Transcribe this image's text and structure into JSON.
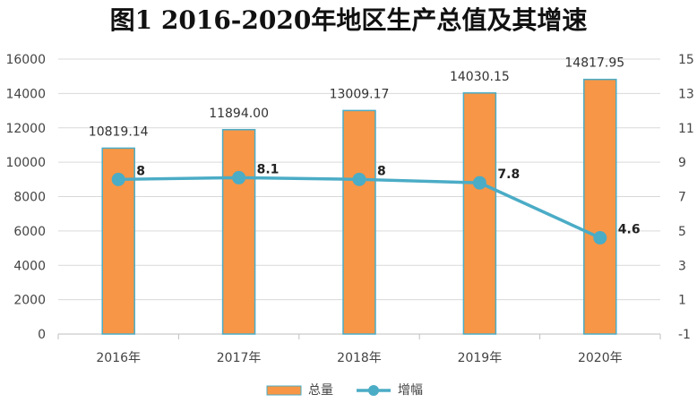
{
  "chart_data": {
    "type": "bar",
    "title": "图1  2016-2020年地区生产总值及其增速",
    "categories": [
      "2016年",
      "2017年",
      "2018年",
      "2019年",
      "2020年"
    ],
    "bar_series": {
      "name": "总量",
      "values": [
        10819.14,
        11894.0,
        13009.17,
        14030.15,
        14817.95
      ],
      "value_labels": [
        "10819.14",
        "11894.00",
        "13009.17",
        "14030.15",
        "14817.95"
      ],
      "color": "#F79646",
      "stroke": "#4BACC6"
    },
    "line_series": {
      "name": "增幅",
      "values": [
        8,
        8.1,
        8,
        7.8,
        4.6
      ],
      "value_labels": [
        "8",
        "8.1",
        "8",
        "7.8",
        "4.6"
      ],
      "color": "#4BACC6",
      "axis": "right"
    },
    "y_left": {
      "min": 0,
      "max": 16000,
      "ticks": [
        "0",
        "2000",
        "4000",
        "6000",
        "8000",
        "10000",
        "12000",
        "14000",
        "16000"
      ]
    },
    "y_right": {
      "min": -1,
      "max": 15,
      "ticks": [
        "-1",
        "1",
        "3",
        "5",
        "7",
        "9",
        "11",
        "13",
        "15"
      ]
    },
    "grid": true,
    "legend_position": "bottom",
    "legend": [
      "总量",
      "增幅"
    ]
  }
}
